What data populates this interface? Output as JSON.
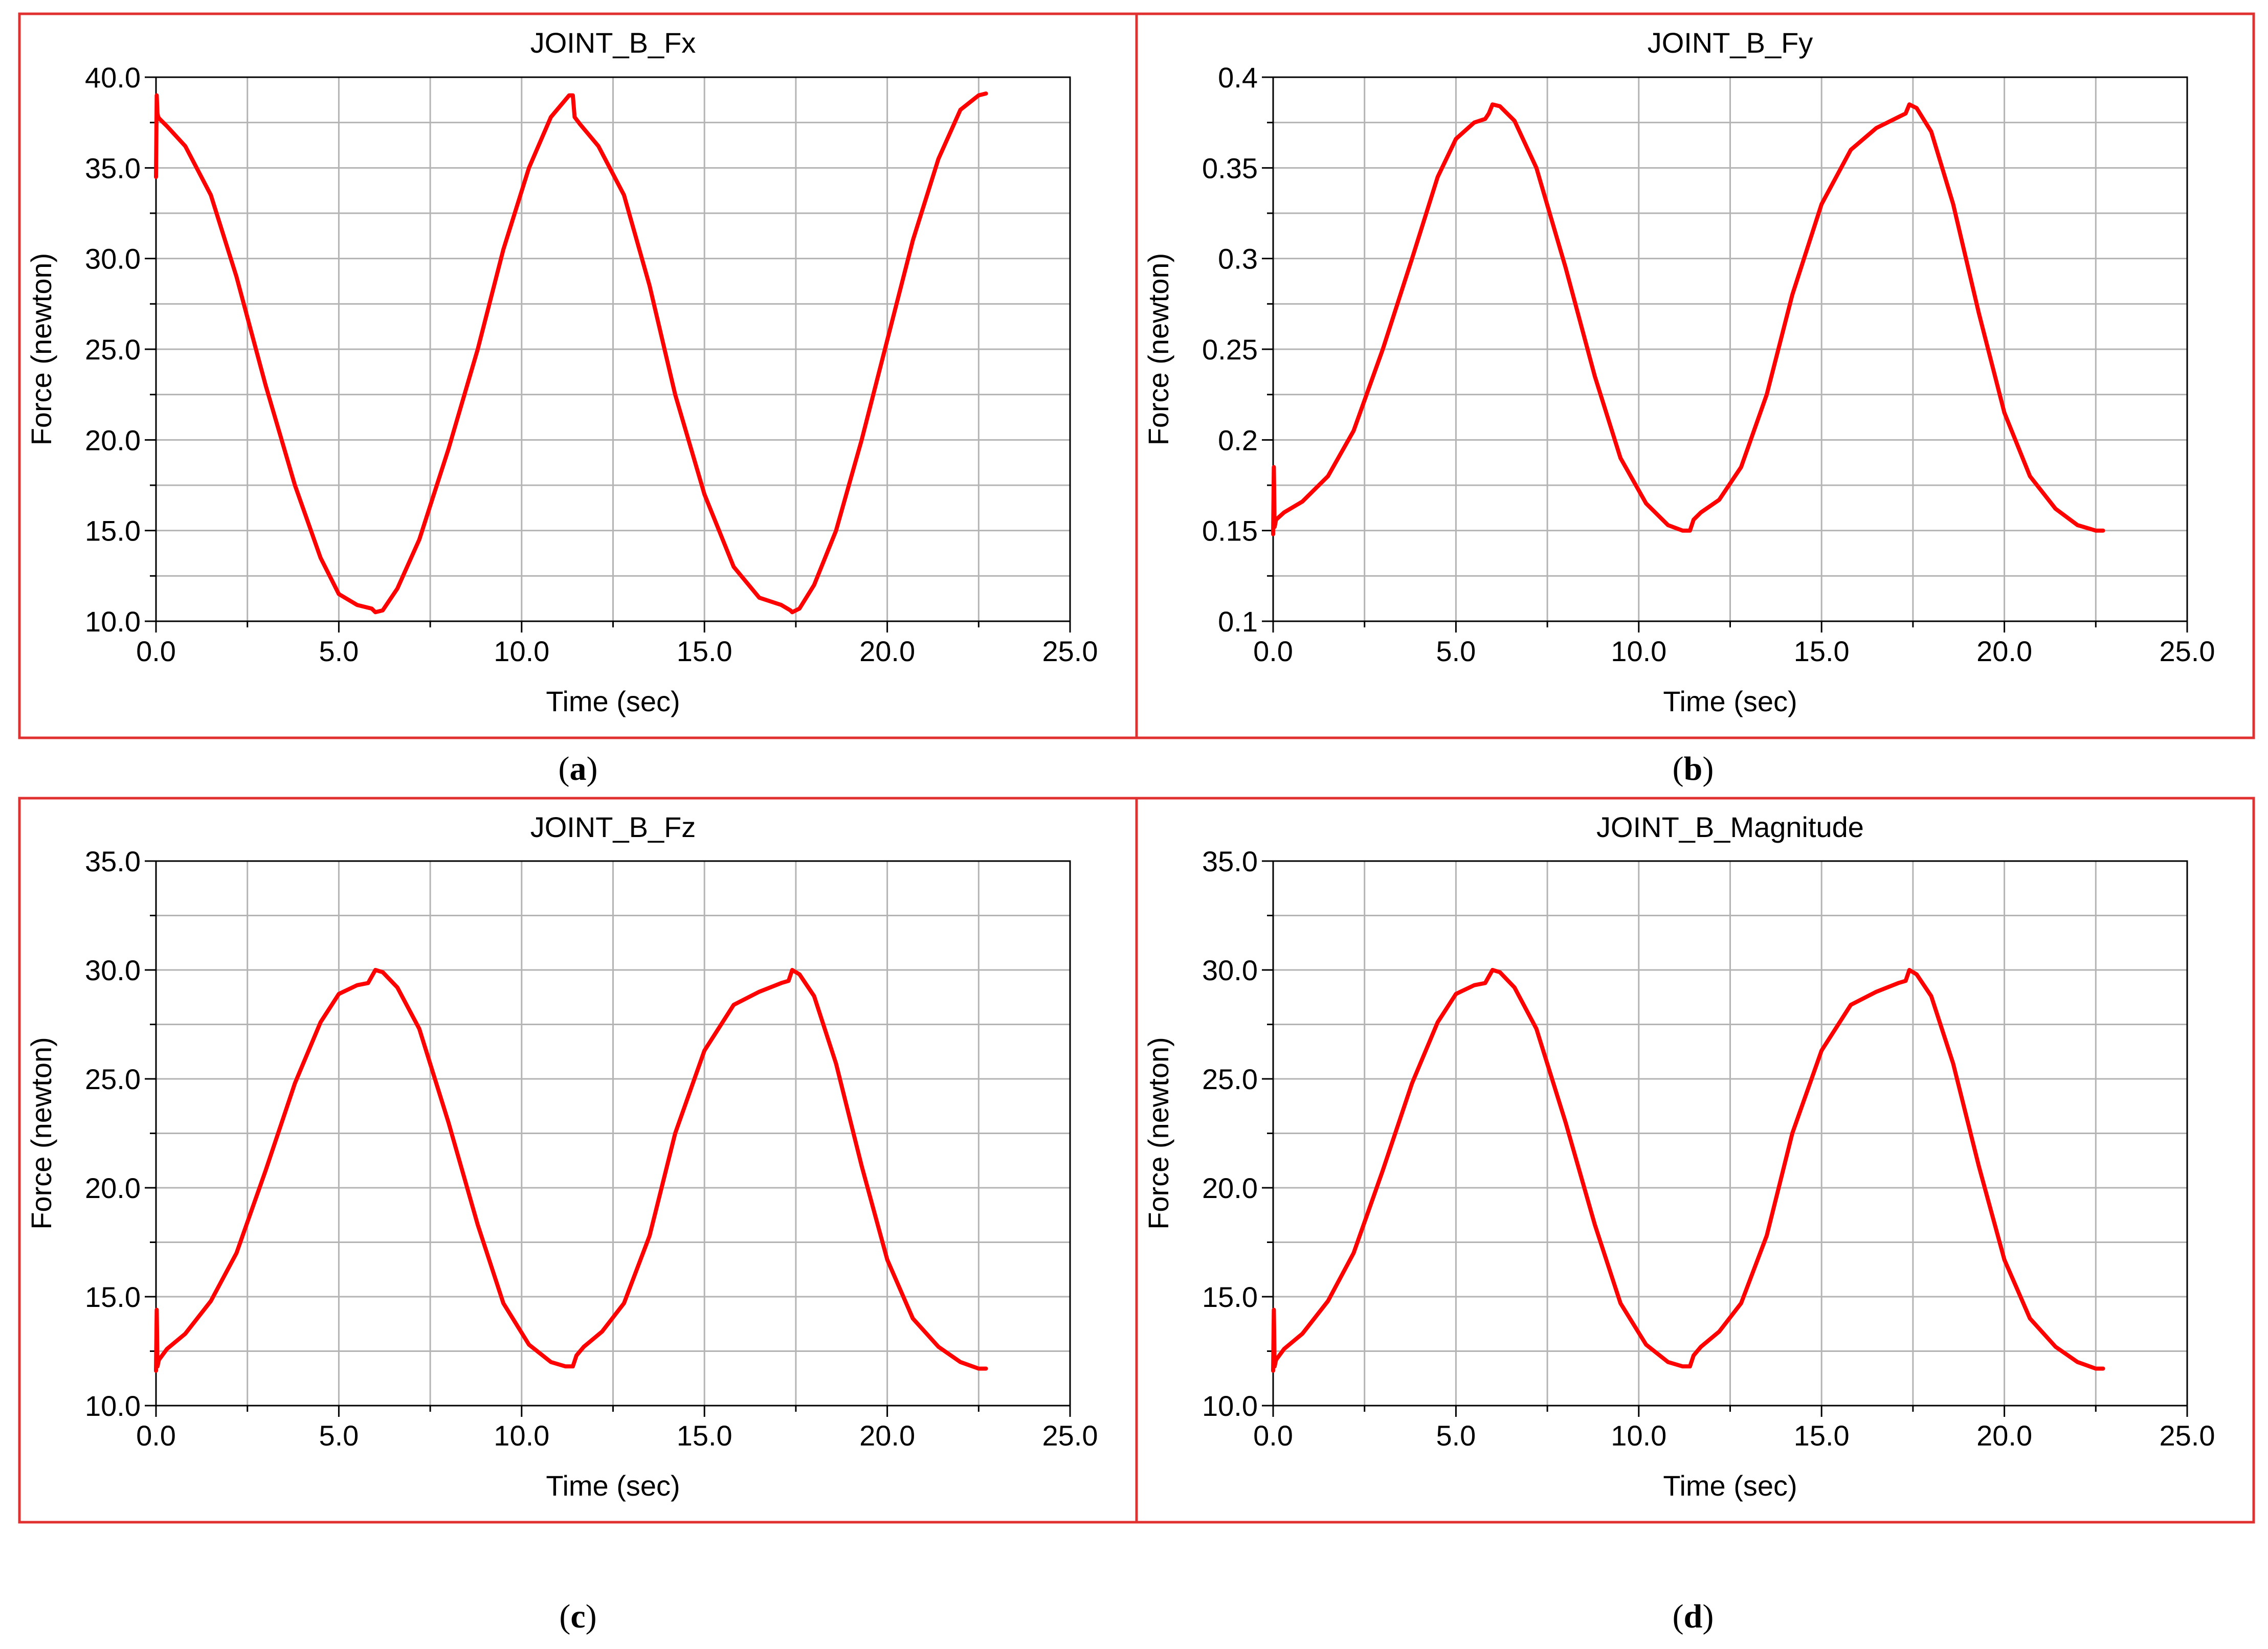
{
  "colors": {
    "frame": "#e03030",
    "curve": "#ff0000",
    "grid": "#b4b4b4",
    "axis": "#000000",
    "background": "#ffffff"
  },
  "captions": [
    {
      "open": "(",
      "letter": "a",
      "close": ")"
    },
    {
      "open": "(",
      "letter": "b",
      "close": ")"
    },
    {
      "open": "(",
      "letter": "c",
      "close": ")"
    },
    {
      "open": "(",
      "letter": "d",
      "close": ")"
    }
  ],
  "chart_data": [
    {
      "type": "line",
      "title": "JOINT_B_Fx",
      "xlabel": "Time (sec)",
      "ylabel": "Force (newton)",
      "xlim": [
        0,
        25
      ],
      "ylim": [
        10,
        40
      ],
      "xticks": [
        "0.0",
        "5.0",
        "10.0",
        "15.0",
        "20.0",
        "25.0"
      ],
      "yticks": [
        "10.0",
        "15.0",
        "20.0",
        "25.0",
        "30.0",
        "35.0",
        "40.0"
      ],
      "grid": true,
      "series": [
        {
          "name": "JOINT_B_Fx",
          "x": [
            0.0,
            0.02,
            0.04,
            0.06,
            0.1,
            0.3,
            0.8,
            1.5,
            2.2,
            3.0,
            3.8,
            4.5,
            5.0,
            5.5,
            5.9,
            6.0,
            6.2,
            6.6,
            7.2,
            8.0,
            8.8,
            9.5,
            10.2,
            10.8,
            11.3,
            11.4,
            11.45,
            11.6,
            12.1,
            12.8,
            13.5,
            14.2,
            15.0,
            15.8,
            16.5,
            17.1,
            17.35,
            17.4,
            17.6,
            18.0,
            18.6,
            19.3,
            20.0,
            20.7,
            21.4,
            22.0,
            22.5,
            22.7
          ],
          "y": [
            34.5,
            39.0,
            38.0,
            37.8,
            37.7,
            37.3,
            36.2,
            33.5,
            29.0,
            23.0,
            17.5,
            13.5,
            11.5,
            10.9,
            10.7,
            10.5,
            10.6,
            11.8,
            14.5,
            19.5,
            25.0,
            30.5,
            35.0,
            37.8,
            39.0,
            39.0,
            37.8,
            37.4,
            36.2,
            33.5,
            28.5,
            22.5,
            17.0,
            13.0,
            11.3,
            10.9,
            10.6,
            10.5,
            10.7,
            12.0,
            15.0,
            20.0,
            25.5,
            31.0,
            35.5,
            38.2,
            39.0,
            39.1
          ]
        }
      ]
    },
    {
      "type": "line",
      "title": "JOINT_B_Fy",
      "xlabel": "Time (sec)",
      "ylabel": "Force (newton)",
      "xlim": [
        0,
        25
      ],
      "ylim": [
        0.1,
        0.4
      ],
      "xticks": [
        "0.0",
        "5.0",
        "10.0",
        "15.0",
        "20.0",
        "25.0"
      ],
      "yticks": [
        "0.1",
        "0.15",
        "0.2",
        "0.25",
        "0.3",
        "0.35",
        "0.4"
      ],
      "grid": true,
      "series": [
        {
          "name": "JOINT_B_Fy",
          "x": [
            0.0,
            0.02,
            0.04,
            0.08,
            0.3,
            0.8,
            1.5,
            2.2,
            3.0,
            3.8,
            4.5,
            5.0,
            5.5,
            5.8,
            5.9,
            6.0,
            6.2,
            6.6,
            7.2,
            8.0,
            8.8,
            9.5,
            10.2,
            10.8,
            11.2,
            11.4,
            11.5,
            11.7,
            12.2,
            12.8,
            13.5,
            14.2,
            15.0,
            15.8,
            16.5,
            17.1,
            17.3,
            17.4,
            17.6,
            18.0,
            18.6,
            19.3,
            20.0,
            20.7,
            21.4,
            22.0,
            22.5,
            22.7
          ],
          "y": [
            0.148,
            0.185,
            0.152,
            0.156,
            0.16,
            0.166,
            0.18,
            0.205,
            0.25,
            0.3,
            0.345,
            0.366,
            0.375,
            0.377,
            0.38,
            0.385,
            0.384,
            0.376,
            0.35,
            0.295,
            0.235,
            0.19,
            0.165,
            0.153,
            0.15,
            0.15,
            0.156,
            0.16,
            0.167,
            0.185,
            0.225,
            0.28,
            0.33,
            0.36,
            0.372,
            0.378,
            0.38,
            0.385,
            0.383,
            0.37,
            0.33,
            0.27,
            0.215,
            0.18,
            0.162,
            0.153,
            0.15,
            0.15
          ]
        }
      ]
    },
    {
      "type": "line",
      "title": "JOINT_B_Fz",
      "xlabel": "Time (sec)",
      "ylabel": "Force (newton)",
      "xlim": [
        0,
        25
      ],
      "ylim": [
        10,
        35
      ],
      "xticks": [
        "0.0",
        "5.0",
        "10.0",
        "15.0",
        "20.0",
        "25.0"
      ],
      "yticks": [
        "10.0",
        "15.0",
        "20.0",
        "25.0",
        "30.0",
        "35.0"
      ],
      "grid": true,
      "series": [
        {
          "name": "JOINT_B_Fz",
          "x": [
            0.0,
            0.02,
            0.04,
            0.08,
            0.3,
            0.8,
            1.5,
            2.2,
            3.0,
            3.8,
            4.5,
            5.0,
            5.5,
            5.8,
            5.9,
            6.0,
            6.2,
            6.6,
            7.2,
            8.0,
            8.8,
            9.5,
            10.2,
            10.8,
            11.2,
            11.4,
            11.5,
            11.7,
            12.2,
            12.8,
            13.5,
            14.2,
            15.0,
            15.8,
            16.5,
            17.1,
            17.3,
            17.4,
            17.6,
            18.0,
            18.6,
            19.3,
            20.0,
            20.7,
            21.4,
            22.0,
            22.5,
            22.7
          ],
          "y": [
            11.6,
            14.4,
            11.8,
            12.1,
            12.6,
            13.3,
            14.8,
            17.0,
            20.8,
            24.8,
            27.6,
            28.9,
            29.3,
            29.4,
            29.7,
            30.0,
            29.9,
            29.2,
            27.3,
            23.0,
            18.3,
            14.7,
            12.8,
            12.0,
            11.8,
            11.8,
            12.3,
            12.7,
            13.4,
            14.7,
            17.8,
            22.5,
            26.3,
            28.4,
            29.0,
            29.4,
            29.5,
            30.0,
            29.8,
            28.8,
            25.7,
            21.0,
            16.7,
            14.0,
            12.7,
            12.0,
            11.7,
            11.7
          ]
        }
      ]
    },
    {
      "type": "line",
      "title": "JOINT_B_Magnitude",
      "xlabel": "Time (sec)",
      "ylabel": "Force (newton)",
      "xlim": [
        0,
        25
      ],
      "ylim": [
        10,
        35
      ],
      "xticks": [
        "0.0",
        "5.0",
        "10.0",
        "15.0",
        "20.0",
        "25.0"
      ],
      "yticks": [
        "10.0",
        "15.0",
        "20.0",
        "25.0",
        "30.0",
        "35.0"
      ],
      "grid": true,
      "series": [
        {
          "name": "JOINT_B_Magnitude",
          "x": [
            0.0,
            0.02,
            0.04,
            0.08,
            0.3,
            0.8,
            1.5,
            2.2,
            3.0,
            3.8,
            4.5,
            5.0,
            5.5,
            5.8,
            5.9,
            6.0,
            6.2,
            6.6,
            7.2,
            8.0,
            8.8,
            9.5,
            10.2,
            10.8,
            11.2,
            11.4,
            11.5,
            11.7,
            12.2,
            12.8,
            13.5,
            14.2,
            15.0,
            15.8,
            16.5,
            17.1,
            17.3,
            17.4,
            17.6,
            18.0,
            18.6,
            19.3,
            20.0,
            20.7,
            21.4,
            22.0,
            22.5,
            22.7
          ],
          "y": [
            11.6,
            14.4,
            11.8,
            12.1,
            12.6,
            13.3,
            14.8,
            17.0,
            20.8,
            24.8,
            27.6,
            28.9,
            29.3,
            29.4,
            29.7,
            30.0,
            29.9,
            29.2,
            27.3,
            23.0,
            18.3,
            14.7,
            12.8,
            12.0,
            11.8,
            11.8,
            12.3,
            12.7,
            13.4,
            14.7,
            17.8,
            22.5,
            26.3,
            28.4,
            29.0,
            29.4,
            29.5,
            30.0,
            29.8,
            28.8,
            25.7,
            21.0,
            16.7,
            14.0,
            12.7,
            12.0,
            11.7,
            11.7
          ]
        }
      ]
    }
  ]
}
